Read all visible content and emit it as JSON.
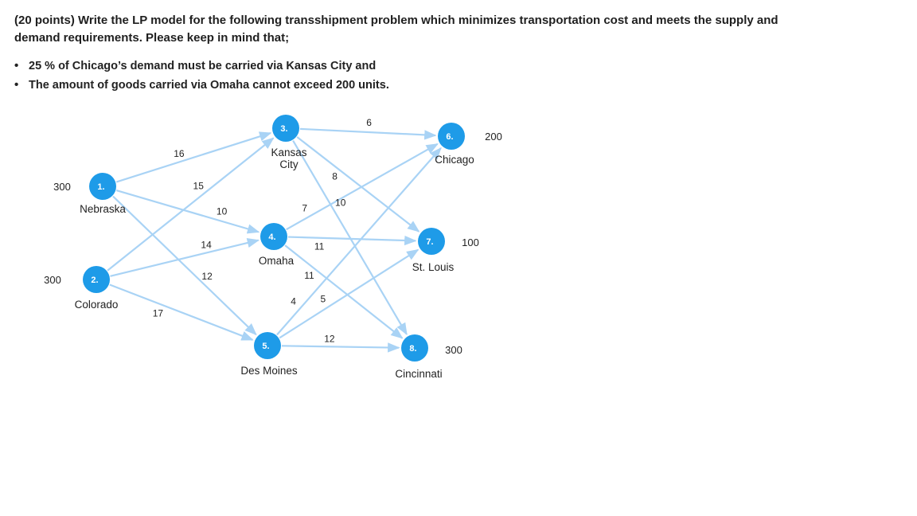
{
  "question": {
    "intro": "(20 points) Write the LP model for the following transshipment problem which minimizes transportation cost and meets the supply and demand requirements. Please keep in mind that;",
    "bullets": [
      "25 % of Chicago’s demand must be carried via Kansas City and",
      "The amount of goods carried via Omaha cannot exceed 200 units."
    ]
  },
  "colors": {
    "node": "#1e9be8",
    "arc": "#a9d3f5",
    "node_text": "#ffffff"
  },
  "network": {
    "nodes": [
      {
        "id": "1",
        "label": "1.",
        "name": "Nebraska",
        "amount": "300"
      },
      {
        "id": "2",
        "label": "2.",
        "name": "Colorado",
        "amount": "300"
      },
      {
        "id": "3",
        "label": "3.",
        "name": "Kansas City",
        "name_lines": [
          "Kansas",
          "City"
        ]
      },
      {
        "id": "4",
        "label": "4.",
        "name": "Omaha"
      },
      {
        "id": "5",
        "label": "5.",
        "name": "Des Moines"
      },
      {
        "id": "6",
        "label": "6.",
        "name": "Chicago",
        "amount": "200"
      },
      {
        "id": "7",
        "label": "7.",
        "name": "St. Louis",
        "amount": "100"
      },
      {
        "id": "8",
        "label": "8.",
        "name": "Cincinnati",
        "amount": "300"
      }
    ],
    "arcs": [
      {
        "from": "1",
        "to": "3",
        "cost": "16"
      },
      {
        "from": "1",
        "to": "4",
        "cost": "10"
      },
      {
        "from": "1",
        "to": "5",
        "cost": "12"
      },
      {
        "from": "2",
        "to": "3",
        "cost": "15"
      },
      {
        "from": "2",
        "to": "4",
        "cost": "14"
      },
      {
        "from": "2",
        "to": "5",
        "cost": "17"
      },
      {
        "from": "3",
        "to": "6",
        "cost": "6"
      },
      {
        "from": "3",
        "to": "7",
        "cost": "8"
      },
      {
        "from": "3",
        "to": "8",
        "cost": "10"
      },
      {
        "from": "4",
        "to": "6",
        "cost": "7"
      },
      {
        "from": "4",
        "to": "7",
        "cost": "11"
      },
      {
        "from": "4",
        "to": "8",
        "cost": "11"
      },
      {
        "from": "5",
        "to": "6",
        "cost": "4"
      },
      {
        "from": "5",
        "to": "7",
        "cost": "5"
      },
      {
        "from": "5",
        "to": "8",
        "cost": "12"
      }
    ]
  }
}
